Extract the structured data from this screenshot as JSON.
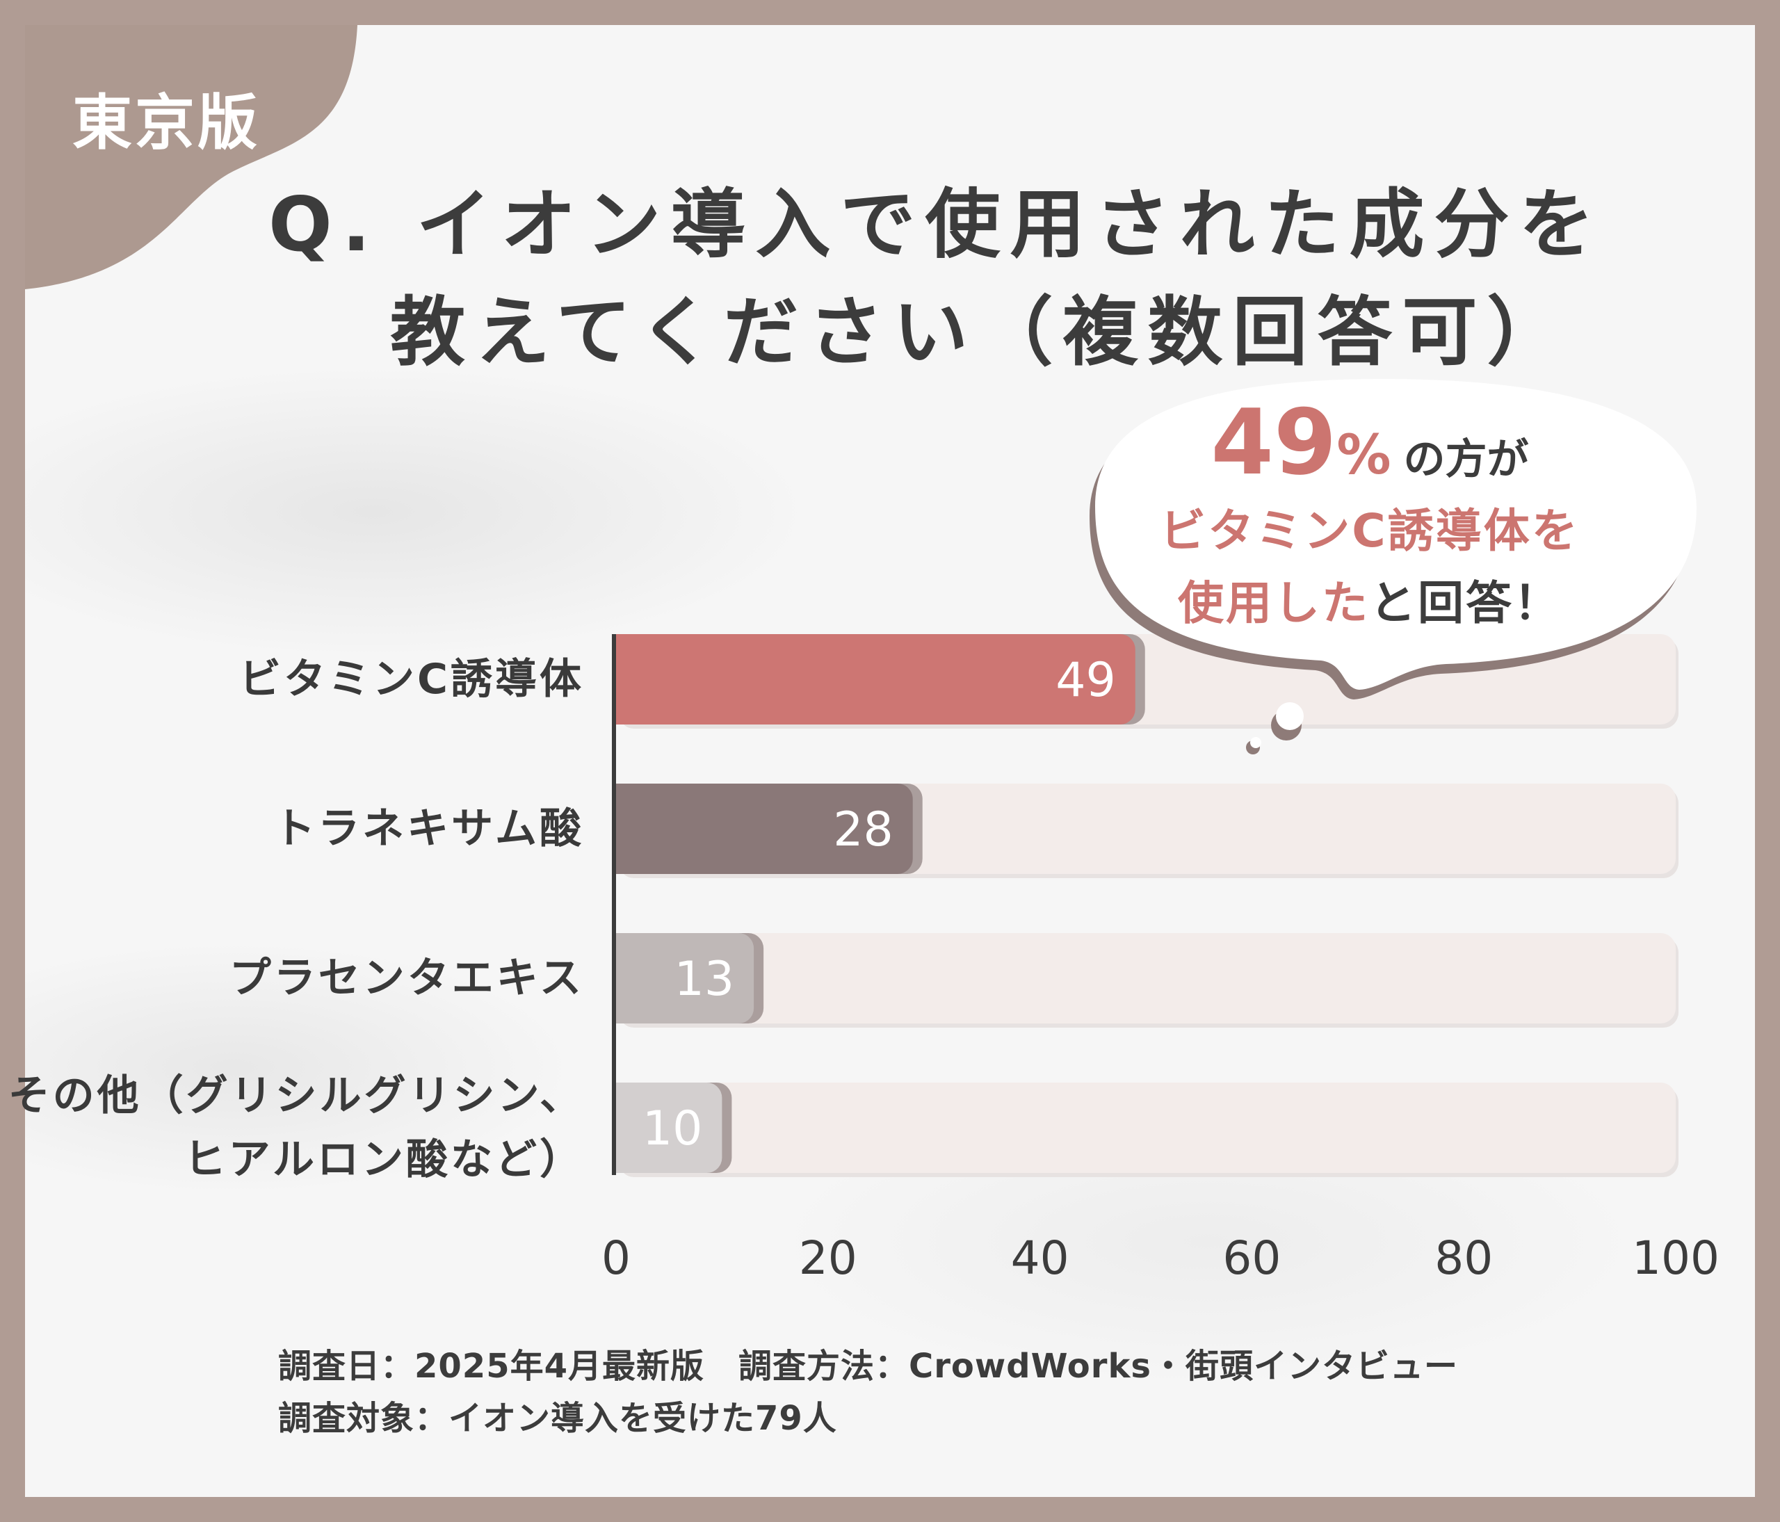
{
  "badge": {
    "region": "東京版"
  },
  "title": {
    "line1": "Q. イオン導入で使用された成分を",
    "line2": "教えてください（複数回答可）"
  },
  "callout": {
    "pct_value": "49",
    "pct_sign": "%",
    "line1_rest": "の方が",
    "line2": "ビタミンC誘導体を",
    "line3_accent": "使用した",
    "line3_rest": "と回答！"
  },
  "chart_data": {
    "type": "bar",
    "orientation": "horizontal",
    "categories": [
      "ビタミンC誘導体",
      "トラネキサム酸",
      "プラセンタエキス",
      "その他（グリシルグリシン、ヒアルロン酸など）"
    ],
    "category_label_lines": [
      [
        "ビタミンC誘導体"
      ],
      [
        "トラネキサム酸"
      ],
      [
        "プラセンタエキス"
      ],
      [
        "その他（グリシルグリシン、",
        "ヒアルロン酸など）"
      ]
    ],
    "values": [
      49,
      28,
      13,
      10
    ],
    "bar_colors": [
      "#cd7673",
      "#8a7878",
      "#bfb8b7",
      "#d3cfcf"
    ],
    "track_color": "#f3ecea",
    "xlim": [
      0,
      100
    ],
    "xticks": [
      "0",
      "20",
      "40",
      "60",
      "80",
      "100"
    ],
    "data_labels": [
      "49",
      "28",
      "13",
      "10"
    ],
    "grid": false,
    "title": "",
    "xlabel": "",
    "ylabel": ""
  },
  "notes": {
    "line1": "調査日：2025年4月最新版　調査方法：CrowdWorks・街頭インタビュー",
    "line2": "調査対象：イオン導入を受けた79人"
  }
}
